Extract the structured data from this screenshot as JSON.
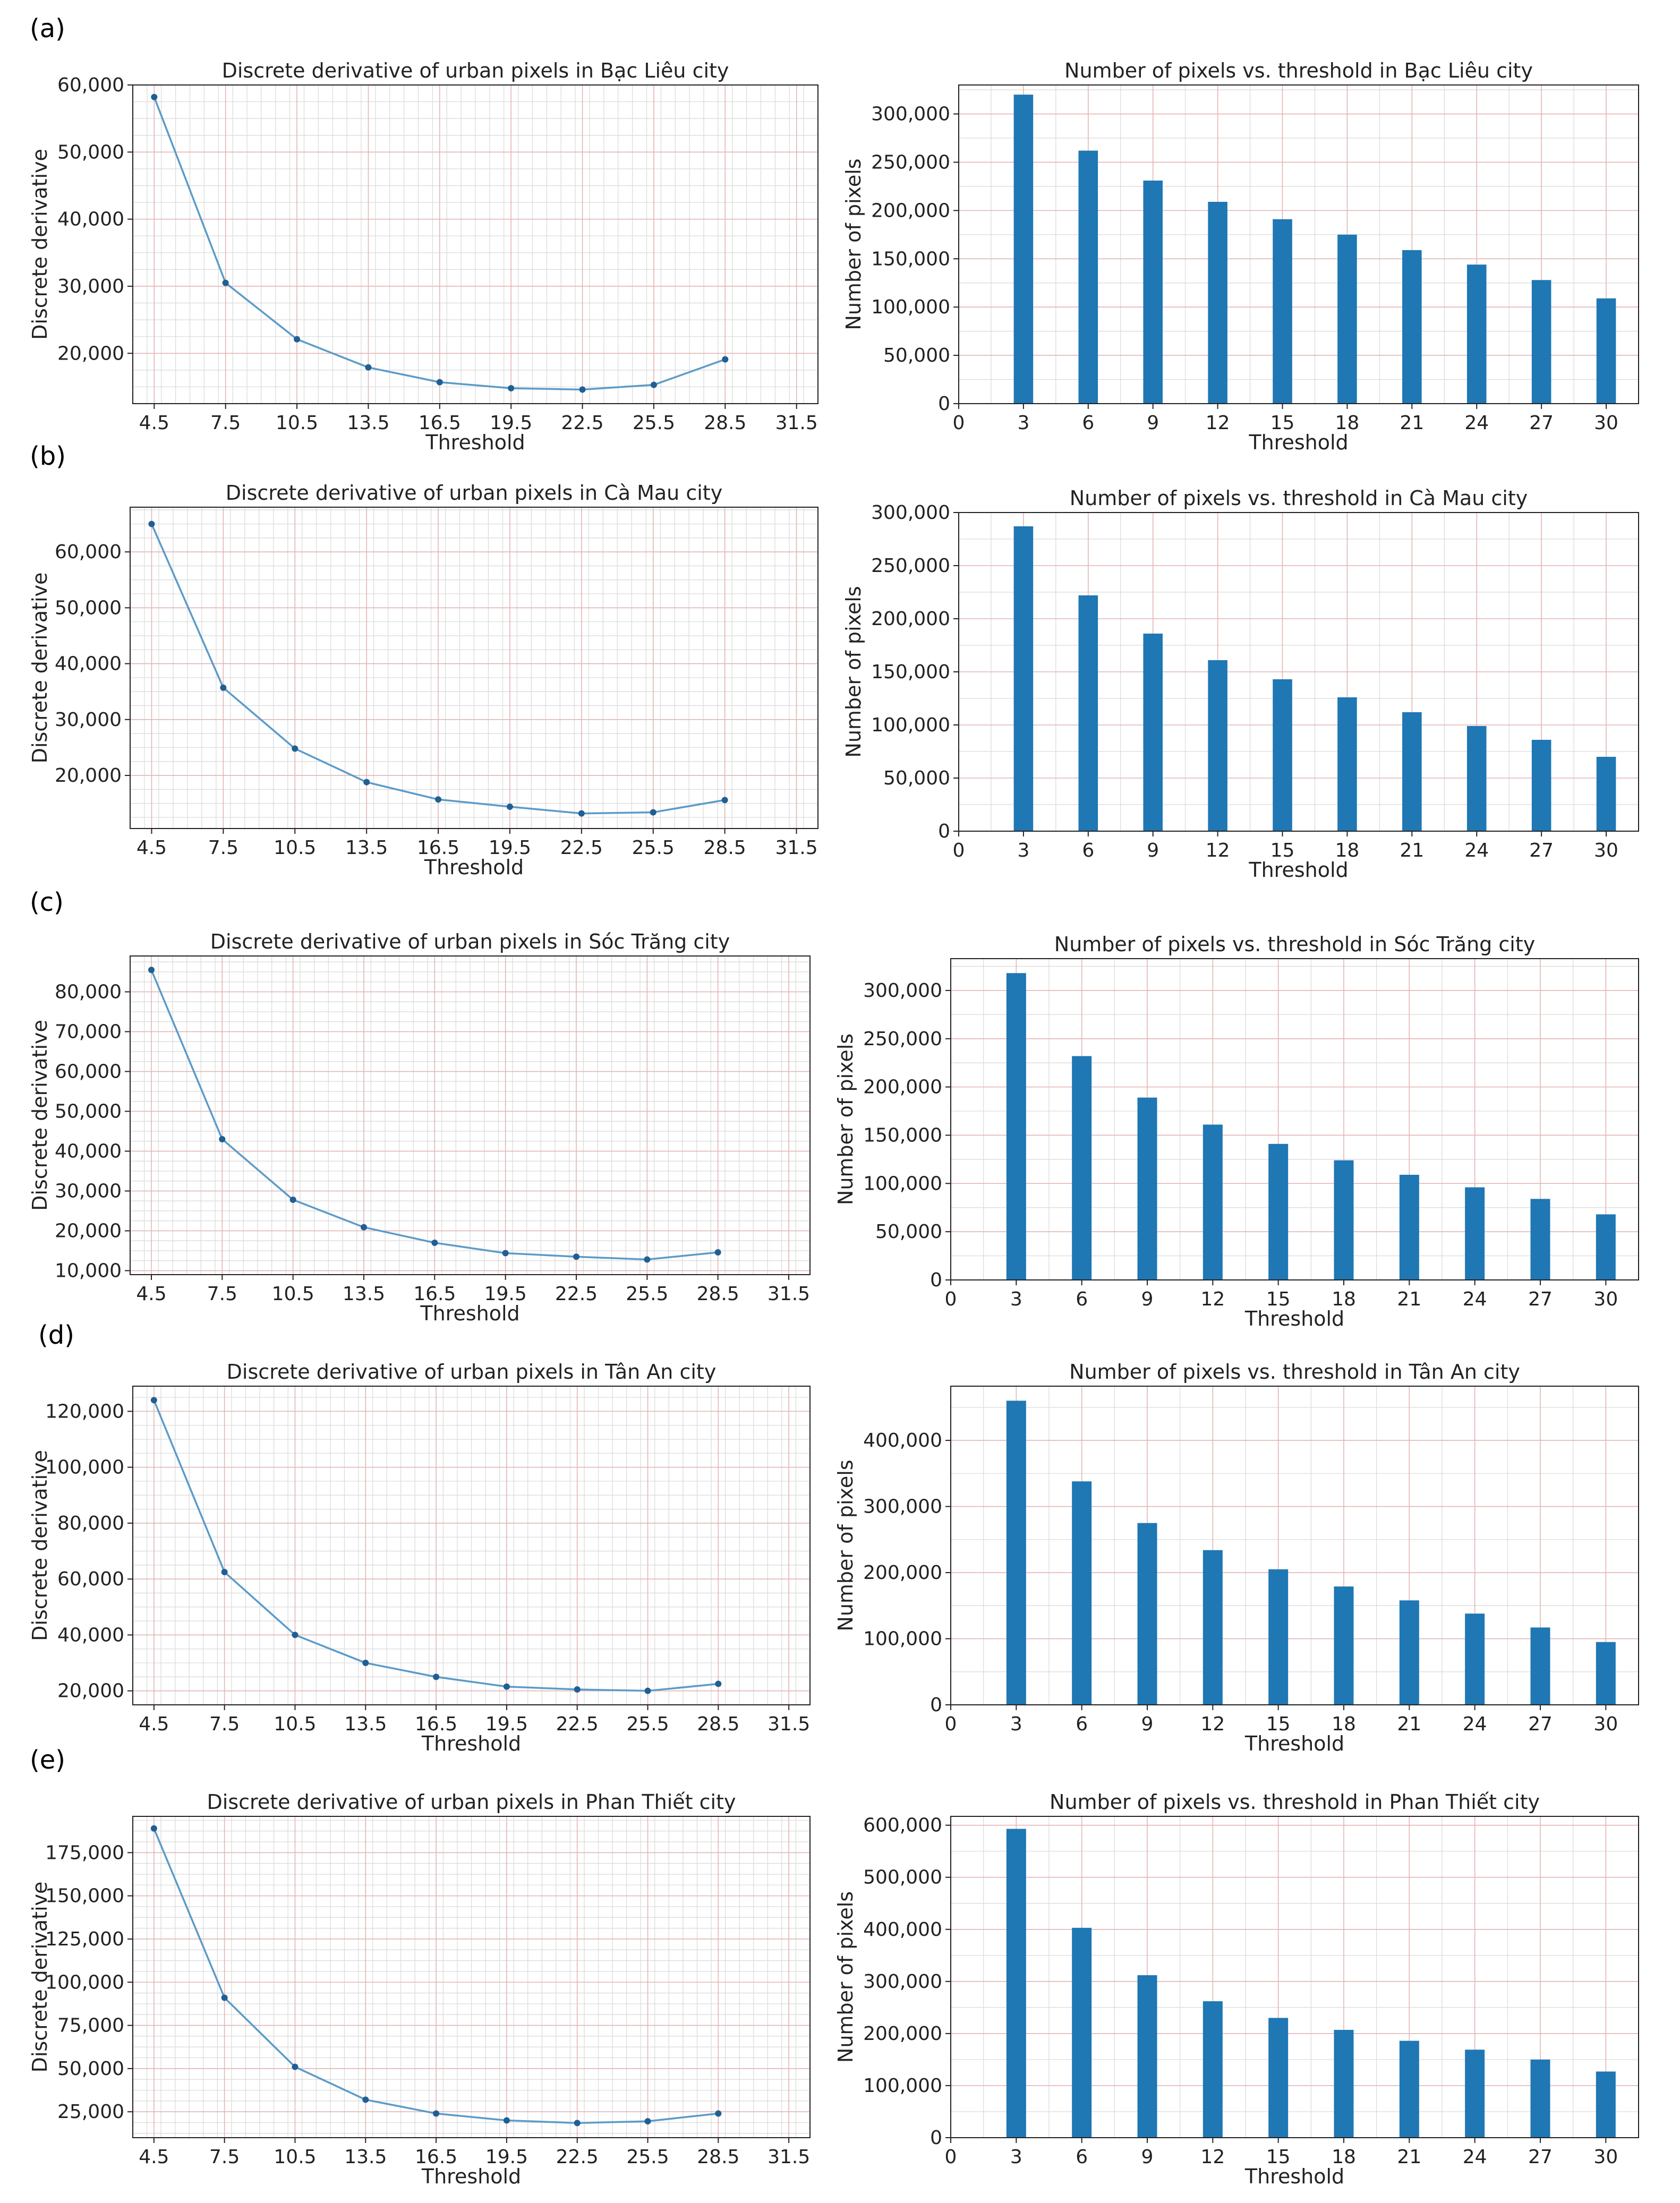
{
  "colors": {
    "line": "#5b9bc8",
    "marker": "#1f5f93",
    "bar": "#1f77b4",
    "grid_major": "#e3b5b5",
    "grid_minor": "#d9d9d9",
    "axis": "#222222"
  },
  "panels": [
    {
      "label": "(a)",
      "line": {
        "title": "Discrete derivative of urban pixels in Bạc Liêu city",
        "xlabel": "Threshold",
        "ylabel": "Discrete derivative",
        "x": [
          4.5,
          7.5,
          10.5,
          13.5,
          16.5,
          19.5,
          22.5,
          25.5,
          28.5
        ],
        "y": [
          58200,
          30500,
          22100,
          17900,
          15700,
          14800,
          14600,
          15300,
          19100
        ],
        "xticks": [
          4.5,
          7.5,
          10.5,
          13.5,
          16.5,
          19.5,
          22.5,
          25.5,
          28.5,
          31.5
        ],
        "xtick_labels": [
          "4.5",
          "7.5",
          "10.5",
          "13.5",
          "16.5",
          "19.5",
          "22.5",
          "25.5",
          "28.5",
          "31.5"
        ],
        "yticks": [
          20000,
          30000,
          40000,
          50000,
          60000
        ],
        "ytick_labels": [
          "20,000",
          "30,000",
          "40,000",
          "50,000",
          "60,000"
        ],
        "xlim": [
          3.6,
          32.4
        ],
        "ylim": [
          12500,
          60000
        ]
      },
      "bar": {
        "title": "Number of pixels vs. threshold in Bạc Liêu city",
        "xlabel": "Threshold",
        "ylabel": "Number of pixels",
        "categories": [
          3,
          6,
          9,
          12,
          15,
          18,
          21,
          24,
          27,
          30
        ],
        "values": [
          320000,
          262000,
          231000,
          209000,
          191000,
          175000,
          159000,
          144000,
          128000,
          109000
        ],
        "xticks": [
          0,
          3,
          6,
          9,
          12,
          15,
          18,
          21,
          24,
          27,
          30
        ],
        "xtick_labels": [
          "0",
          "3",
          "6",
          "9",
          "12",
          "15",
          "18",
          "21",
          "24",
          "27",
          "30"
        ],
        "yticks": [
          0,
          50000,
          100000,
          150000,
          200000,
          250000,
          300000
        ],
        "ytick_labels": [
          "0",
          "50,000",
          "100,000",
          "150,000",
          "200,000",
          "250,000",
          "300,000"
        ],
        "xlim": [
          0,
          31.5
        ],
        "ylim": [
          0,
          330000
        ]
      }
    },
    {
      "label": "(b)",
      "line": {
        "title": "Discrete derivative of urban pixels in Cà Mau city",
        "xlabel": "Threshold",
        "ylabel": "Discrete derivative",
        "x": [
          4.5,
          7.5,
          10.5,
          13.5,
          16.5,
          19.5,
          22.5,
          25.5,
          28.5
        ],
        "y": [
          65000,
          35700,
          24800,
          18800,
          15700,
          14400,
          13200,
          13400,
          15600
        ],
        "xticks": [
          4.5,
          7.5,
          10.5,
          13.5,
          16.5,
          19.5,
          22.5,
          25.5,
          28.5,
          31.5
        ],
        "xtick_labels": [
          "4.5",
          "7.5",
          "10.5",
          "13.5",
          "16.5",
          "19.5",
          "22.5",
          "25.5",
          "28.5",
          "31.5"
        ],
        "yticks": [
          20000,
          30000,
          40000,
          50000,
          60000
        ],
        "ytick_labels": [
          "20,000",
          "30,000",
          "40,000",
          "50,000",
          "60,000"
        ],
        "xlim": [
          3.6,
          32.4
        ],
        "ylim": [
          10500,
          68000
        ]
      },
      "bar": {
        "title": "Number of pixels vs. threshold in Cà Mau city",
        "xlabel": "Threshold",
        "ylabel": "Number of pixels",
        "categories": [
          3,
          6,
          9,
          12,
          15,
          18,
          21,
          24,
          27,
          30
        ],
        "values": [
          287000,
          222000,
          186000,
          161000,
          143000,
          126000,
          112000,
          99000,
          86000,
          70000
        ],
        "xticks": [
          0,
          3,
          6,
          9,
          12,
          15,
          18,
          21,
          24,
          27,
          30
        ],
        "xtick_labels": [
          "0",
          "3",
          "6",
          "9",
          "12",
          "15",
          "18",
          "21",
          "24",
          "27",
          "30"
        ],
        "yticks": [
          0,
          50000,
          100000,
          150000,
          200000,
          250000,
          300000
        ],
        "ytick_labels": [
          "0",
          "50,000",
          "100,000",
          "150,000",
          "200,000",
          "250,000",
          "300,000"
        ],
        "xlim": [
          0,
          31.5
        ],
        "ylim": [
          0,
          300000
        ]
      }
    },
    {
      "label": "(c)",
      "line": {
        "title": "Discrete derivative of urban pixels in Sóc Trăng city",
        "xlabel": "Threshold",
        "ylabel": "Discrete derivative",
        "x": [
          4.5,
          7.5,
          10.5,
          13.5,
          16.5,
          19.5,
          22.5,
          25.5,
          28.5
        ],
        "y": [
          85500,
          43000,
          27800,
          20900,
          17000,
          14400,
          13500,
          12800,
          14600
        ],
        "xticks": [
          4.5,
          7.5,
          10.5,
          13.5,
          16.5,
          19.5,
          22.5,
          25.5,
          28.5,
          31.5
        ],
        "xtick_labels": [
          "4.5",
          "7.5",
          "10.5",
          "13.5",
          "16.5",
          "19.5",
          "22.5",
          "25.5",
          "28.5",
          "31.5"
        ],
        "yticks": [
          10000,
          20000,
          30000,
          40000,
          50000,
          60000,
          70000,
          80000
        ],
        "ytick_labels": [
          "10,000",
          "20,000",
          "30,000",
          "40,000",
          "50,000",
          "60,000",
          "70,000",
          "80,000"
        ],
        "xlim": [
          3.6,
          32.4
        ],
        "ylim": [
          9000,
          89000
        ]
      },
      "bar": {
        "title": "Number of pixels vs. threshold in Sóc Trăng city",
        "xlabel": "Threshold",
        "ylabel": "Number of pixels",
        "categories": [
          3,
          6,
          9,
          12,
          15,
          18,
          21,
          24,
          27,
          30
        ],
        "values": [
          318000,
          232000,
          189000,
          161000,
          141000,
          124000,
          109000,
          96000,
          84000,
          68000
        ],
        "xticks": [
          0,
          3,
          6,
          9,
          12,
          15,
          18,
          21,
          24,
          27,
          30
        ],
        "xtick_labels": [
          "0",
          "3",
          "6",
          "9",
          "12",
          "15",
          "18",
          "21",
          "24",
          "27",
          "30"
        ],
        "yticks": [
          0,
          50000,
          100000,
          150000,
          200000,
          250000,
          300000
        ],
        "ytick_labels": [
          "0",
          "50,000",
          "100,000",
          "150,000",
          "200,000",
          "250,000",
          "300,000"
        ],
        "xlim": [
          0,
          31.5
        ],
        "ylim": [
          0,
          333000
        ]
      }
    },
    {
      "label": "(d)",
      "line": {
        "title": "Discrete derivative of urban pixels in Tân An city",
        "xlabel": "Threshold",
        "ylabel": "Discrete derivative",
        "x": [
          4.5,
          7.5,
          10.5,
          13.5,
          16.5,
          19.5,
          22.5,
          25.5,
          28.5
        ],
        "y": [
          124000,
          62500,
          40000,
          30000,
          25000,
          21500,
          20500,
          20000,
          22500
        ],
        "xticks": [
          4.5,
          7.5,
          10.5,
          13.5,
          16.5,
          19.5,
          22.5,
          25.5,
          28.5,
          31.5
        ],
        "xtick_labels": [
          "4.5",
          "7.5",
          "10.5",
          "13.5",
          "16.5",
          "19.5",
          "22.5",
          "25.5",
          "28.5",
          "31.5"
        ],
        "yticks": [
          20000,
          40000,
          60000,
          80000,
          100000,
          120000
        ],
        "ytick_labels": [
          "20,000",
          "40,000",
          "60,000",
          "80,000",
          "100,000",
          "120,000"
        ],
        "xlim": [
          3.6,
          32.4
        ],
        "ylim": [
          15000,
          129000
        ]
      },
      "bar": {
        "title": "Number of pixels vs. threshold in Tân An city",
        "xlabel": "Threshold",
        "ylabel": "Number of pixels",
        "categories": [
          3,
          6,
          9,
          12,
          15,
          18,
          21,
          24,
          27,
          30
        ],
        "values": [
          460000,
          338000,
          275000,
          234000,
          205000,
          179000,
          158000,
          138000,
          117000,
          95000
        ],
        "xticks": [
          0,
          3,
          6,
          9,
          12,
          15,
          18,
          21,
          24,
          27,
          30
        ],
        "xtick_labels": [
          "0",
          "3",
          "6",
          "9",
          "12",
          "15",
          "18",
          "21",
          "24",
          "27",
          "30"
        ],
        "yticks": [
          0,
          100000,
          200000,
          300000,
          400000
        ],
        "ytick_labels": [
          "0",
          "100,000",
          "200,000",
          "300,000",
          "400,000"
        ],
        "xlim": [
          0,
          31.5
        ],
        "ylim": [
          0,
          482000
        ]
      }
    },
    {
      "label": "(e)",
      "line": {
        "title": "Discrete derivative of urban pixels in Phan Thiết city",
        "xlabel": "Threshold",
        "ylabel": "Discrete derivative",
        "x": [
          4.5,
          7.5,
          10.5,
          13.5,
          16.5,
          19.5,
          22.5,
          25.5,
          28.5
        ],
        "y": [
          189000,
          91000,
          51000,
          32000,
          24000,
          20000,
          18500,
          19500,
          24000
        ],
        "xticks": [
          4.5,
          7.5,
          10.5,
          13.5,
          16.5,
          19.5,
          22.5,
          25.5,
          28.5,
          31.5
        ],
        "xtick_labels": [
          "4.5",
          "7.5",
          "10.5",
          "13.5",
          "16.5",
          "19.5",
          "22.5",
          "25.5",
          "28.5",
          "31.5"
        ],
        "yticks": [
          25000,
          50000,
          75000,
          100000,
          125000,
          150000,
          175000
        ],
        "ytick_labels": [
          "25,000",
          "50,000",
          "75,000",
          "100,000",
          "125,000",
          "150,000",
          "175,000"
        ],
        "xlim": [
          3.6,
          32.4
        ],
        "ylim": [
          10000,
          196000
        ]
      },
      "bar": {
        "title": "Number of pixels vs. threshold in Phan Thiết city",
        "xlabel": "Threshold",
        "ylabel": "Number of pixels",
        "categories": [
          3,
          6,
          9,
          12,
          15,
          18,
          21,
          24,
          27,
          30
        ],
        "values": [
          593000,
          403000,
          312000,
          262000,
          230000,
          207000,
          186000,
          169000,
          150000,
          127000
        ],
        "xticks": [
          0,
          3,
          6,
          9,
          12,
          15,
          18,
          21,
          24,
          27,
          30
        ],
        "xtick_labels": [
          "0",
          "3",
          "6",
          "9",
          "12",
          "15",
          "18",
          "21",
          "24",
          "27",
          "30"
        ],
        "yticks": [
          0,
          100000,
          200000,
          300000,
          400000,
          500000,
          600000
        ],
        "ytick_labels": [
          "0",
          "100,000",
          "200,000",
          "300,000",
          "400,000",
          "500,000",
          "600,000"
        ],
        "xlim": [
          0,
          31.5
        ],
        "ylim": [
          0,
          617000
        ]
      }
    }
  ],
  "chart_data": [
    {
      "type": "line",
      "title": "Discrete derivative of urban pixels in Bạc Liêu city",
      "xlabel": "Threshold",
      "ylabel": "Discrete derivative",
      "x": [
        4.5,
        7.5,
        10.5,
        13.5,
        16.5,
        19.5,
        22.5,
        25.5,
        28.5
      ],
      "y": [
        58200,
        30500,
        22100,
        17900,
        15700,
        14800,
        14600,
        15300,
        19100
      ]
    },
    {
      "type": "bar",
      "title": "Number of pixels vs. threshold in Bạc Liêu city",
      "xlabel": "Threshold",
      "ylabel": "Number of pixels",
      "categories": [
        3,
        6,
        9,
        12,
        15,
        18,
        21,
        24,
        27,
        30
      ],
      "values": [
        320000,
        262000,
        231000,
        209000,
        191000,
        175000,
        159000,
        144000,
        128000,
        109000
      ]
    },
    {
      "type": "line",
      "title": "Discrete derivative of urban pixels in Cà Mau city",
      "xlabel": "Threshold",
      "ylabel": "Discrete derivative",
      "x": [
        4.5,
        7.5,
        10.5,
        13.5,
        16.5,
        19.5,
        22.5,
        25.5,
        28.5
      ],
      "y": [
        65000,
        35700,
        24800,
        18800,
        15700,
        14400,
        13200,
        13400,
        15600
      ]
    },
    {
      "type": "bar",
      "title": "Number of pixels vs. threshold in Cà Mau city",
      "xlabel": "Threshold",
      "ylabel": "Number of pixels",
      "categories": [
        3,
        6,
        9,
        12,
        15,
        18,
        21,
        24,
        27,
        30
      ],
      "values": [
        287000,
        222000,
        186000,
        161000,
        143000,
        126000,
        112000,
        99000,
        86000,
        70000
      ]
    },
    {
      "type": "line",
      "title": "Discrete derivative of urban pixels in Sóc Trăng city",
      "xlabel": "Threshold",
      "ylabel": "Discrete derivative",
      "x": [
        4.5,
        7.5,
        10.5,
        13.5,
        16.5,
        19.5,
        22.5,
        25.5,
        28.5
      ],
      "y": [
        85500,
        43000,
        27800,
        20900,
        17000,
        14400,
        13500,
        12800,
        14600
      ]
    },
    {
      "type": "bar",
      "title": "Number of pixels vs. threshold in Sóc Trăng city",
      "xlabel": "Threshold",
      "ylabel": "Number of pixels",
      "categories": [
        3,
        6,
        9,
        12,
        15,
        18,
        21,
        24,
        27,
        30
      ],
      "values": [
        318000,
        232000,
        189000,
        161000,
        141000,
        124000,
        109000,
        96000,
        84000,
        68000
      ]
    },
    {
      "type": "line",
      "title": "Discrete derivative of urban pixels in Tân An city",
      "xlabel": "Threshold",
      "ylabel": "Discrete derivative",
      "x": [
        4.5,
        7.5,
        10.5,
        13.5,
        16.5,
        19.5,
        22.5,
        25.5,
        28.5
      ],
      "y": [
        124000,
        62500,
        40000,
        30000,
        25000,
        21500,
        20500,
        20000,
        22500
      ]
    },
    {
      "type": "bar",
      "title": "Number of pixels vs. threshold in Tân An city",
      "xlabel": "Threshold",
      "ylabel": "Number of pixels",
      "categories": [
        3,
        6,
        9,
        12,
        15,
        18,
        21,
        24,
        27,
        30
      ],
      "values": [
        460000,
        338000,
        275000,
        234000,
        205000,
        179000,
        158000,
        138000,
        117000,
        95000
      ]
    },
    {
      "type": "line",
      "title": "Discrete derivative of urban pixels in Phan Thiết city",
      "xlabel": "Threshold",
      "ylabel": "Discrete derivative",
      "x": [
        4.5,
        7.5,
        10.5,
        13.5,
        16.5,
        19.5,
        22.5,
        25.5,
        28.5
      ],
      "y": [
        189000,
        91000,
        51000,
        32000,
        24000,
        20000,
        18500,
        19500,
        24000
      ]
    },
    {
      "type": "bar",
      "title": "Number of pixels vs. threshold in Phan Thiết city",
      "xlabel": "Threshold",
      "ylabel": "Number of pixels",
      "categories": [
        3,
        6,
        9,
        12,
        15,
        18,
        21,
        24,
        27,
        30
      ],
      "values": [
        593000,
        403000,
        312000,
        262000,
        230000,
        207000,
        186000,
        169000,
        150000,
        127000
      ]
    }
  ]
}
